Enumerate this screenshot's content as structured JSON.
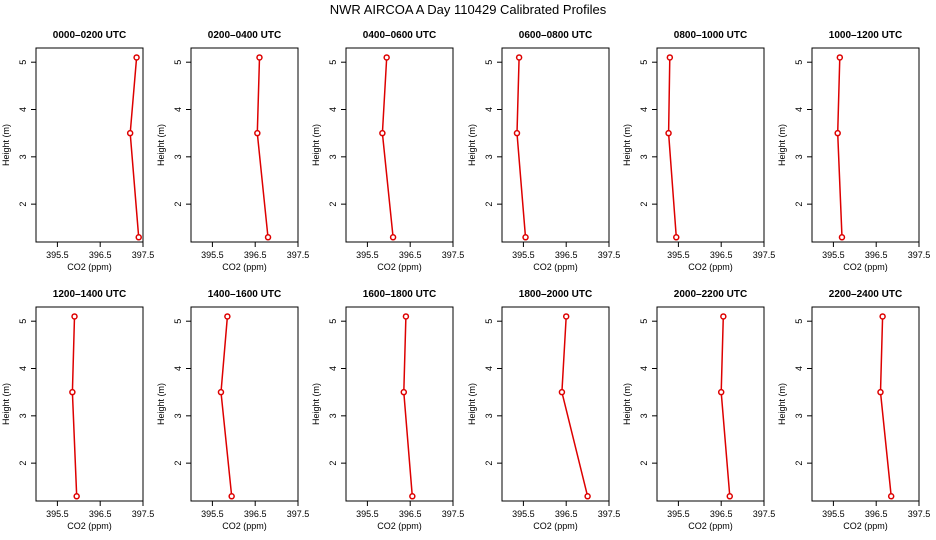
{
  "title": "NWR AIRCOA A  Day 110429  Calibrated Profiles",
  "colors": {
    "series": "#dd0000",
    "axis": "#000000",
    "background": "#ffffff"
  },
  "chart_data": [
    {
      "type": "line",
      "title": "0000–0200 UTC",
      "xlabel": "CO2 (ppm)",
      "ylabel": "Height (m)",
      "xlim": [
        395.0,
        397.5
      ],
      "ylim": [
        1.2,
        5.3
      ],
      "xticks": [
        "395.5",
        "396.5",
        "397.5"
      ],
      "yticks": [
        "2",
        "3",
        "4",
        "5"
      ],
      "x": [
        397.35,
        397.2,
        397.4
      ],
      "y": [
        5.1,
        3.5,
        1.3
      ]
    },
    {
      "type": "line",
      "title": "0200–0400 UTC",
      "xlabel": "CO2 (ppm)",
      "ylabel": "Height (m)",
      "xlim": [
        395.0,
        397.5
      ],
      "ylim": [
        1.2,
        5.3
      ],
      "xticks": [
        "395.5",
        "396.5",
        "397.5"
      ],
      "yticks": [
        "2",
        "3",
        "4",
        "5"
      ],
      "x": [
        396.6,
        396.55,
        396.8
      ],
      "y": [
        5.1,
        3.5,
        1.3
      ]
    },
    {
      "type": "line",
      "title": "0400–0600 UTC",
      "xlabel": "CO2 (ppm)",
      "ylabel": "Height (m)",
      "xlim": [
        395.0,
        397.5
      ],
      "ylim": [
        1.2,
        5.3
      ],
      "xticks": [
        "395.5",
        "396.5",
        "397.5"
      ],
      "yticks": [
        "2",
        "3",
        "4",
        "5"
      ],
      "x": [
        395.95,
        395.85,
        396.1
      ],
      "y": [
        5.1,
        3.5,
        1.3
      ]
    },
    {
      "type": "line",
      "title": "0600–0800 UTC",
      "xlabel": "CO2 (ppm)",
      "ylabel": "Height (m)",
      "xlim": [
        395.0,
        397.5
      ],
      "ylim": [
        1.2,
        5.3
      ],
      "xticks": [
        "395.5",
        "396.5",
        "397.5"
      ],
      "yticks": [
        "2",
        "3",
        "4",
        "5"
      ],
      "x": [
        395.4,
        395.35,
        395.55
      ],
      "y": [
        5.1,
        3.5,
        1.3
      ]
    },
    {
      "type": "line",
      "title": "0800–1000 UTC",
      "xlabel": "CO2 (ppm)",
      "ylabel": "Height (m)",
      "xlim": [
        395.0,
        397.5
      ],
      "ylim": [
        1.2,
        5.3
      ],
      "xticks": [
        "395.5",
        "396.5",
        "397.5"
      ],
      "yticks": [
        "2",
        "3",
        "4",
        "5"
      ],
      "x": [
        395.3,
        395.27,
        395.45
      ],
      "y": [
        5.1,
        3.5,
        1.3
      ]
    },
    {
      "type": "line",
      "title": "1000–1200 UTC",
      "xlabel": "CO2 (ppm)",
      "ylabel": "Height (m)",
      "xlim": [
        395.0,
        397.5
      ],
      "ylim": [
        1.2,
        5.3
      ],
      "xticks": [
        "395.5",
        "396.5",
        "397.5"
      ],
      "yticks": [
        "2",
        "3",
        "4",
        "5"
      ],
      "x": [
        395.65,
        395.6,
        395.7
      ],
      "y": [
        5.1,
        3.5,
        1.3
      ]
    },
    {
      "type": "line",
      "title": "1200–1400 UTC",
      "xlabel": "CO2 (ppm)",
      "ylabel": "Height (m)",
      "xlim": [
        395.0,
        397.5
      ],
      "ylim": [
        1.2,
        5.3
      ],
      "xticks": [
        "395.5",
        "396.5",
        "397.5"
      ],
      "yticks": [
        "2",
        "3",
        "4",
        "5"
      ],
      "x": [
        395.9,
        395.85,
        395.95
      ],
      "y": [
        5.1,
        3.5,
        1.3
      ]
    },
    {
      "type": "line",
      "title": "1400–1600 UTC",
      "xlabel": "CO2 (ppm)",
      "ylabel": "Height (m)",
      "xlim": [
        395.0,
        397.5
      ],
      "ylim": [
        1.2,
        5.3
      ],
      "xticks": [
        "395.5",
        "396.5",
        "397.5"
      ],
      "yticks": [
        "2",
        "3",
        "4",
        "5"
      ],
      "x": [
        395.85,
        395.7,
        395.95
      ],
      "y": [
        5.1,
        3.5,
        1.3
      ]
    },
    {
      "type": "line",
      "title": "1600–1800 UTC",
      "xlabel": "CO2 (ppm)",
      "ylabel": "Height (m)",
      "xlim": [
        395.0,
        397.5
      ],
      "ylim": [
        1.2,
        5.3
      ],
      "xticks": [
        "395.5",
        "396.5",
        "397.5"
      ],
      "yticks": [
        "2",
        "3",
        "4",
        "5"
      ],
      "x": [
        396.4,
        396.35,
        396.55
      ],
      "y": [
        5.1,
        3.5,
        1.3
      ]
    },
    {
      "type": "line",
      "title": "1800–2000 UTC",
      "xlabel": "CO2 (ppm)",
      "ylabel": "Height (m)",
      "xlim": [
        395.0,
        397.5
      ],
      "ylim": [
        1.2,
        5.3
      ],
      "xticks": [
        "395.5",
        "396.5",
        "397.5"
      ],
      "yticks": [
        "2",
        "3",
        "4",
        "5"
      ],
      "x": [
        396.5,
        396.4,
        397.0
      ],
      "y": [
        5.1,
        3.5,
        1.3
      ]
    },
    {
      "type": "line",
      "title": "2000–2200 UTC",
      "xlabel": "CO2 (ppm)",
      "ylabel": "Height (m)",
      "xlim": [
        395.0,
        397.5
      ],
      "ylim": [
        1.2,
        5.3
      ],
      "xticks": [
        "395.5",
        "396.5",
        "397.5"
      ],
      "yticks": [
        "2",
        "3",
        "4",
        "5"
      ],
      "x": [
        396.55,
        396.5,
        396.7
      ],
      "y": [
        5.1,
        3.5,
        1.3
      ]
    },
    {
      "type": "line",
      "title": "2200–2400 UTC",
      "xlabel": "CO2 (ppm)",
      "ylabel": "Height (m)",
      "xlim": [
        395.0,
        397.5
      ],
      "ylim": [
        1.2,
        5.3
      ],
      "xticks": [
        "395.5",
        "396.5",
        "397.5"
      ],
      "yticks": [
        "2",
        "3",
        "4",
        "5"
      ],
      "x": [
        396.65,
        396.6,
        396.85
      ],
      "y": [
        5.1,
        3.5,
        1.3
      ]
    }
  ]
}
